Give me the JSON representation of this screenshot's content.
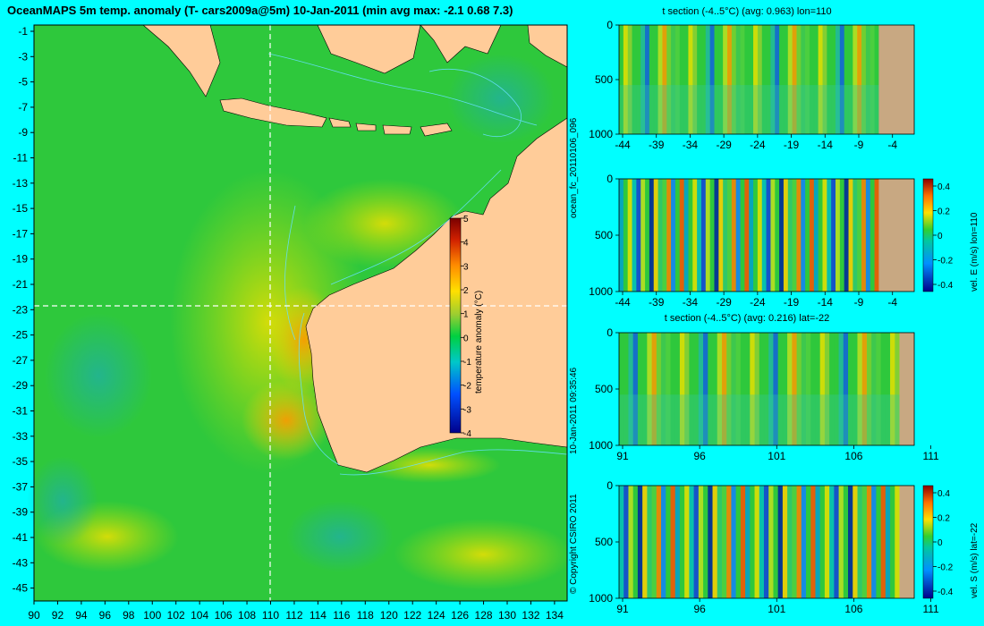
{
  "title": "OceanMAPS 5m temp. anomaly (T- cars2009a@5m) 10-Jan-2011 (min avg max: -2.1 0.68 7.3)",
  "map": {
    "lat_ticks": [
      "-1",
      "-3",
      "-5",
      "-7",
      "-9",
      "-11",
      "-13",
      "-15",
      "-17",
      "-19",
      "-21",
      "-23",
      "-25",
      "-27",
      "-29",
      "-31",
      "-33",
      "-35",
      "-37",
      "-39",
      "-41",
      "-43",
      "-45"
    ],
    "lon_ticks": [
      "90",
      "92",
      "94",
      "96",
      "98",
      "100",
      "102",
      "104",
      "106",
      "108",
      "110",
      "112",
      "114",
      "116",
      "118",
      "120",
      "122",
      "124",
      "126",
      "128",
      "130",
      "132",
      "134"
    ],
    "lon_range": [
      90,
      135
    ],
    "lat_range": [
      -45,
      0
    ],
    "crosshair": {
      "lon": 110,
      "lat": -22
    },
    "colorbar": {
      "label": "temperature anomaly (°C)",
      "ticks": [
        "5",
        "4",
        "3",
        "2",
        "1",
        "0",
        "-1",
        "-2",
        "-3",
        "-4"
      ],
      "range": [
        -4,
        5
      ]
    }
  },
  "sections": [
    {
      "title": "t section (-4..5°C) (avg: 0.963) lon=110",
      "x_ticks": [
        "-44",
        "-39",
        "-34",
        "-29",
        "-24",
        "-19",
        "-14",
        "-9",
        "-4"
      ],
      "y_ticks": [
        "0",
        "500",
        "1000"
      ],
      "side_label": ""
    },
    {
      "title": "",
      "x_ticks": [
        "-44",
        "-39",
        "-34",
        "-29",
        "-24",
        "-19",
        "-14",
        "-9",
        "-4"
      ],
      "y_ticks": [
        "0",
        "500",
        "1000"
      ],
      "side_label": "vel. E (m/s) lon=110",
      "colorbar_ticks": [
        "0.4",
        "0.2",
        "0",
        "-0.2",
        "-0.4"
      ]
    },
    {
      "title": "t section (-4..5°C) (avg: 0.216) lat=-22",
      "x_ticks": [
        "91",
        "96",
        "101",
        "106",
        "111"
      ],
      "y_ticks": [
        "0",
        "500",
        "1000"
      ],
      "side_label": ""
    },
    {
      "title": "",
      "x_ticks": [
        "91",
        "96",
        "101",
        "106",
        "111"
      ],
      "y_ticks": [
        "0",
        "500",
        "1000"
      ],
      "side_label": "vel. S (m/s) lat=-22",
      "colorbar_ticks": [
        "0.4",
        "0.2",
        "0",
        "-0.2",
        "-0.4"
      ]
    }
  ],
  "vertical_texts": {
    "run_id": "ocean_fc_20110106_096",
    "timestamp": "10-Jan-2011 09:35:46",
    "copyright": "© Copyright CSIRO 2011"
  },
  "colors": {
    "background": "#00ffff",
    "land": "#ffcc99",
    "section_land": "#c8a882"
  }
}
